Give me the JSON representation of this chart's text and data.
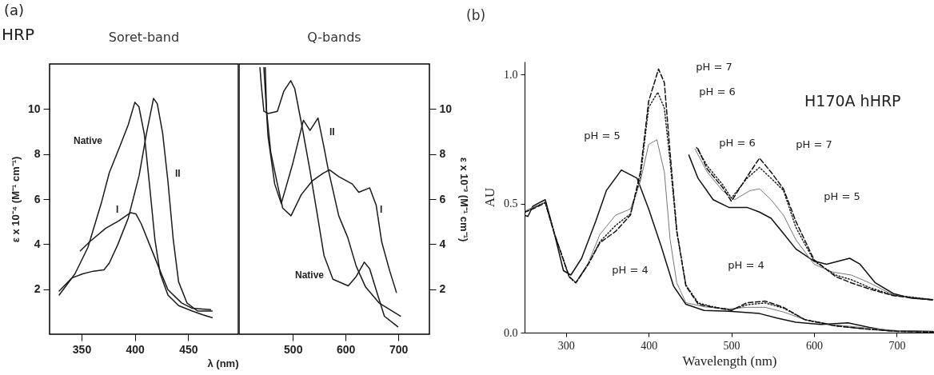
{
  "chart_data": [
    {
      "type": "line",
      "title": "Soret-band",
      "xlabel": "λ (nm)",
      "ylabel": "ε x 10⁻⁴ (M⁻¹ cm⁻¹)",
      "xlim": [
        320,
        497
      ],
      "xticks": [
        350,
        400,
        450
      ],
      "ylim": [
        0,
        12
      ],
      "yticks": [
        2,
        4,
        6,
        8,
        10
      ],
      "grid": false,
      "marker": "none",
      "annotations": [
        "(a)",
        "HRP",
        "Native",
        "I",
        "II"
      ],
      "series": [
        {
          "color": "#1a1a1a",
          "line_style": "solid",
          "x": [
            329,
            343.8,
            356,
            368.8,
            376,
            386,
            393.8,
            400,
            403.8,
            408.8,
            413.8,
            418.8,
            423.8,
            431,
            441,
            453.8,
            463.8,
            472.5
          ],
          "values": [
            1.74,
            2.68,
            3.86,
            5.87,
            7.17,
            8.35,
            9.3,
            10.3,
            10.1,
            8.9,
            6.6,
            4.2,
            2.68,
            1.74,
            1.27,
            1.03,
            0.86,
            0.74
          ]
        },
        {
          "color": "#1a1a1a",
          "line_style": "solid",
          "x": [
            348.8,
            357.5,
            372.5,
            385,
            396,
            401,
            406,
            413.8,
            423.8,
            431,
            443.8,
            453.8,
            471
          ],
          "values": [
            3.7,
            4.1,
            4.7,
            5.04,
            5.4,
            5.34,
            4.9,
            3.98,
            2.8,
            1.98,
            1.39,
            1.15,
            1.09
          ]
        },
        {
          "color": "#1a1a1a",
          "line_style": "solid",
          "x": [
            329,
            341,
            351,
            361,
            371,
            376,
            384,
            393.8,
            404,
            411,
            417.5,
            421,
            426,
            431,
            436,
            441,
            448.8,
            458.8,
            472.5
          ],
          "values": [
            1.92,
            2.5,
            2.68,
            2.8,
            2.86,
            3.16,
            3.98,
            5.16,
            7.05,
            8.94,
            10.47,
            10.24,
            8.94,
            6.8,
            4.2,
            2.33,
            1.39,
            1.03,
            1.03
          ]
        }
      ]
    },
    {
      "type": "line",
      "title": "Q-bands",
      "ylabel": "ε x 10⁻³ (M⁻¹ cm⁻¹)",
      "xlim": [
        398,
        759
      ],
      "xticks": [
        500,
        600,
        700
      ],
      "ylim": [
        0,
        12
      ],
      "yticks": [
        2,
        4,
        6,
        8,
        10
      ],
      "grid": false,
      "marker": "none",
      "annotations": [
        "Native",
        "II",
        "I"
      ],
      "series": [
        {
          "color": "#1a1a1a",
          "line_style": "solid",
          "x": [
            437.6,
            440,
            445,
            452.8,
            470.6,
            483,
            496,
            503.6,
            516,
            531.5,
            546.7,
            559,
            576,
            605,
            620,
            635.5,
            645.7,
            661,
            673.6,
            699
          ],
          "values": [
            11.84,
            11.1,
            9.9,
            9.8,
            9.9,
            10.8,
            11.26,
            10.9,
            9.4,
            7.4,
            5.26,
            3.5,
            2.44,
            2.15,
            2.56,
            3.2,
            2.9,
            1.74,
            0.8,
            0.33
          ]
        },
        {
          "color": "#1a1a1a",
          "line_style": "solid",
          "x": [
            447.7,
            450,
            457.9,
            470.6,
            480.7,
            496.5,
            516,
            536.5,
            556.9,
            569.5,
            587,
            612.7,
            625,
            645.7,
            658,
            668.5,
            683.8,
            696.4
          ],
          "values": [
            11.84,
            9.96,
            8.1,
            6.67,
            5.6,
            5.26,
            6.2,
            6.8,
            7.14,
            7.3,
            7.0,
            6.67,
            6.3,
            6.5,
            5.73,
            4.1,
            2.8,
            1.86
          ]
        },
        {
          "color": "#1a1a1a",
          "line_style": "solid",
          "x": [
            445,
            452.8,
            465.5,
            478,
            500,
            520,
            532.5,
            547.7,
            559,
            566.5,
            587,
            604,
            620,
            637.8,
            663.4,
            704
          ],
          "values": [
            11.84,
            8.8,
            6.67,
            5.8,
            7.6,
            9.5,
            9.05,
            9.6,
            8.3,
            7.38,
            5.26,
            4.3,
            3.03,
            2.1,
            1.39,
            0.8
          ]
        }
      ]
    },
    {
      "type": "line",
      "title": "(b)",
      "xlabel": "Wavelength (nm)",
      "ylabel": "AU",
      "xlim": [
        250,
        745
      ],
      "xticks": [
        300,
        400,
        500,
        600,
        700
      ],
      "ylim": [
        0,
        1.05
      ],
      "yticks": [
        {
          "value": 0,
          "label": "0.0"
        },
        {
          "value": 0.5,
          "label": "0.5"
        },
        {
          "value": 1,
          "label": "1.0"
        }
      ],
      "grid": false,
      "marker": "none",
      "annotations": [
        "H170A hHRP",
        "pH = 7",
        "pH = 6",
        "pH = 5",
        "pH = 4",
        "pH = 6",
        "pH = 7",
        "pH = 5",
        "pH = 4"
      ],
      "series": [
        {
          "color": "#111111",
          "line_style": "solid",
          "x": [
            250,
            254,
            260,
            275,
            286,
            297,
            306,
            319,
            336,
            349,
            367,
            386,
            400,
            415,
            430,
            445,
            467,
            497,
            534,
            556,
            578,
            608,
            641,
            667,
            689,
            744
          ],
          "values": [
            0.455,
            0.45,
            0.49,
            0.515,
            0.384,
            0.24,
            0.223,
            0.288,
            0.431,
            0.551,
            0.63,
            0.598,
            0.479,
            0.336,
            0.181,
            0.11,
            0.086,
            0.083,
            0.074,
            0.056,
            0.04,
            0.032,
            0.038,
            0.02,
            0.008,
            0.005
          ]
        },
        {
          "color": "#777777",
          "line_style": "solid",
          "x": [
            250,
            260,
            275,
            286,
            304,
            312,
            327,
            341,
            360,
            378,
            390,
            400,
            410,
            419,
            426,
            434,
            445,
            467,
            497,
            519,
            541,
            563,
            589,
            626,
            663,
            700,
            744
          ],
          "values": [
            0.47,
            0.485,
            0.505,
            0.384,
            0.215,
            0.195,
            0.27,
            0.38,
            0.455,
            0.479,
            0.586,
            0.729,
            0.747,
            0.622,
            0.36,
            0.193,
            0.116,
            0.1,
            0.092,
            0.098,
            0.098,
            0.08,
            0.05,
            0.03,
            0.018,
            0.008,
            0.003
          ]
        },
        {
          "color": "#222222",
          "line_style": "dotted",
          "x": [
            250,
            260,
            275,
            286,
            304,
            312,
            327,
            341,
            360,
            378,
            390,
            400,
            411,
            419,
            426,
            434,
            445,
            460,
            478,
            500,
            519,
            541,
            563,
            589,
            626,
            663,
            700,
            744
          ],
          "values": [
            0.465,
            0.482,
            0.505,
            0.384,
            0.215,
            0.193,
            0.265,
            0.352,
            0.415,
            0.46,
            0.6,
            0.872,
            0.931,
            0.87,
            0.66,
            0.39,
            0.185,
            0.115,
            0.1,
            0.088,
            0.108,
            0.115,
            0.095,
            0.05,
            0.026,
            0.014,
            0.005,
            0.002
          ]
        },
        {
          "color": "#111111",
          "line_style": "dashed",
          "x": [
            250,
            260,
            275,
            286,
            304,
            312,
            327,
            341,
            360,
            378,
            390,
            400,
            412,
            419,
            426,
            434,
            445,
            460,
            478,
            500,
            519,
            541,
            563,
            589,
            626,
            663,
            700,
            744
          ],
          "values": [
            0.467,
            0.479,
            0.503,
            0.384,
            0.217,
            0.193,
            0.265,
            0.348,
            0.392,
            0.455,
            0.622,
            0.896,
            1.021,
            0.968,
            0.694,
            0.396,
            0.181,
            0.11,
            0.098,
            0.086,
            0.116,
            0.122,
            0.098,
            0.05,
            0.026,
            0.014,
            0.005,
            0.002
          ]
        },
        {
          "color": "#111111",
          "line_style": "solid",
          "x": [
            448.6,
            459.7,
            478,
            497,
            519,
            534,
            548,
            563,
            578,
            600,
            615,
            630,
            643,
            655.6,
            674,
            696,
            718,
            743.6
          ],
          "values": [
            0.688,
            0.598,
            0.515,
            0.485,
            0.485,
            0.467,
            0.443,
            0.384,
            0.324,
            0.277,
            0.265,
            0.277,
            0.288,
            0.265,
            0.193,
            0.151,
            0.133,
            0.128
          ]
        },
        {
          "color": "#777777",
          "line_style": "solid",
          "x": [
            456,
            470.8,
            489.3,
            504,
            522.5,
            534,
            548,
            563,
            578,
            600,
            622,
            645,
            667,
            696,
            743.6
          ],
          "values": [
            0.712,
            0.622,
            0.55,
            0.515,
            0.55,
            0.557,
            0.515,
            0.455,
            0.36,
            0.265,
            0.235,
            0.223,
            0.193,
            0.145,
            0.128
          ]
        },
        {
          "color": "#222222",
          "line_style": "dotted",
          "x": [
            458,
            470.8,
            489.3,
            500,
            519,
            534,
            548,
            563,
            578,
            600,
            626,
            645,
            667,
            696,
            743.6
          ],
          "values": [
            0.717,
            0.646,
            0.574,
            0.521,
            0.598,
            0.64,
            0.598,
            0.551,
            0.408,
            0.277,
            0.223,
            0.205,
            0.175,
            0.145,
            0.128
          ]
        },
        {
          "color": "#111111",
          "line_style": "dashed",
          "x": [
            459.7,
            470.8,
            489.3,
            500,
            519,
            534,
            548,
            563,
            578,
            600,
            626,
            645,
            667,
            696,
            743.6
          ],
          "values": [
            0.712,
            0.634,
            0.563,
            0.509,
            0.604,
            0.676,
            0.622,
            0.557,
            0.431,
            0.282,
            0.217,
            0.193,
            0.169,
            0.143,
            0.126
          ]
        }
      ]
    }
  ]
}
